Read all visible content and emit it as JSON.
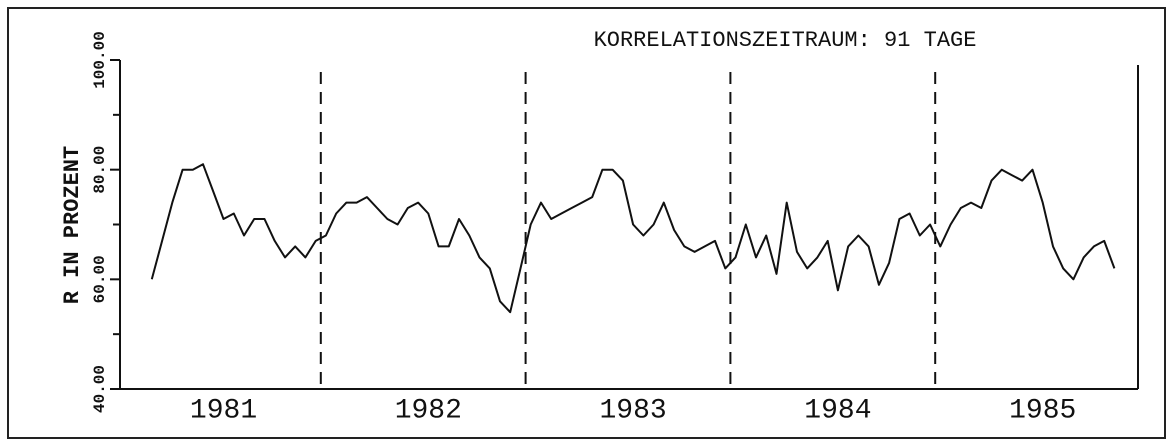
{
  "chart_data": {
    "type": "line",
    "title": "KORRELATIONSZEITRAUM: 91 TAGE",
    "y_label": "R IN PROZENT",
    "categories": [
      null,
      null,
      null,
      null,
      null,
      null,
      null,
      null,
      null,
      null,
      "1981",
      null,
      null,
      null,
      null,
      null,
      null,
      null,
      null,
      null,
      null,
      null,
      null,
      null,
      null,
      null,
      null,
      null,
      null,
      null,
      "1982",
      null,
      null,
      null,
      null,
      null,
      null,
      null,
      null,
      null,
      null,
      null,
      null,
      null,
      null,
      null,
      null,
      null,
      null,
      null,
      "1983",
      null,
      null,
      null,
      null,
      null,
      null,
      null,
      null,
      null,
      null,
      null,
      null,
      null,
      null,
      null,
      null,
      null,
      null,
      null,
      "1984",
      null,
      null,
      null,
      null,
      null,
      null,
      null,
      null,
      null,
      null,
      null,
      null,
      null,
      null,
      null,
      null,
      null,
      null,
      null,
      "1985",
      null,
      null,
      null,
      null,
      null,
      null,
      null,
      null,
      null
    ],
    "series": [
      {
        "name": "R",
        "color": "#111111",
        "values": [
          null,
          null,
          null,
          60,
          67,
          74,
          80,
          80,
          81,
          76,
          71,
          72,
          68,
          71,
          71,
          67,
          64,
          66,
          64,
          67,
          68,
          72,
          74,
          74,
          75,
          73,
          71,
          70,
          73,
          74,
          72,
          66,
          66,
          71,
          68,
          64,
          62,
          56,
          54,
          62,
          70,
          74,
          71,
          72,
          73,
          74,
          75,
          80,
          80,
          78,
          70,
          68,
          70,
          74,
          69,
          66,
          65,
          66,
          67,
          62,
          64,
          70,
          64,
          68,
          61,
          74,
          65,
          62,
          64,
          67,
          58,
          66,
          68,
          66,
          59,
          63,
          71,
          72,
          68,
          70,
          66,
          70,
          73,
          74,
          73,
          78,
          80,
          79,
          78,
          80,
          74,
          66,
          62,
          60,
          64,
          66,
          67,
          62,
          null,
          null
        ]
      }
    ],
    "ylim": [
      40,
      100
    ],
    "yticks": [
      {
        "value": 40,
        "label": "40.00"
      },
      {
        "value": 60,
        "label": "60.00"
      },
      {
        "value": 80,
        "label": "80.00"
      },
      {
        "value": 100,
        "label": "100.00"
      }
    ],
    "yminorticks": [
      50,
      70,
      90
    ],
    "year_dividers": true
  }
}
